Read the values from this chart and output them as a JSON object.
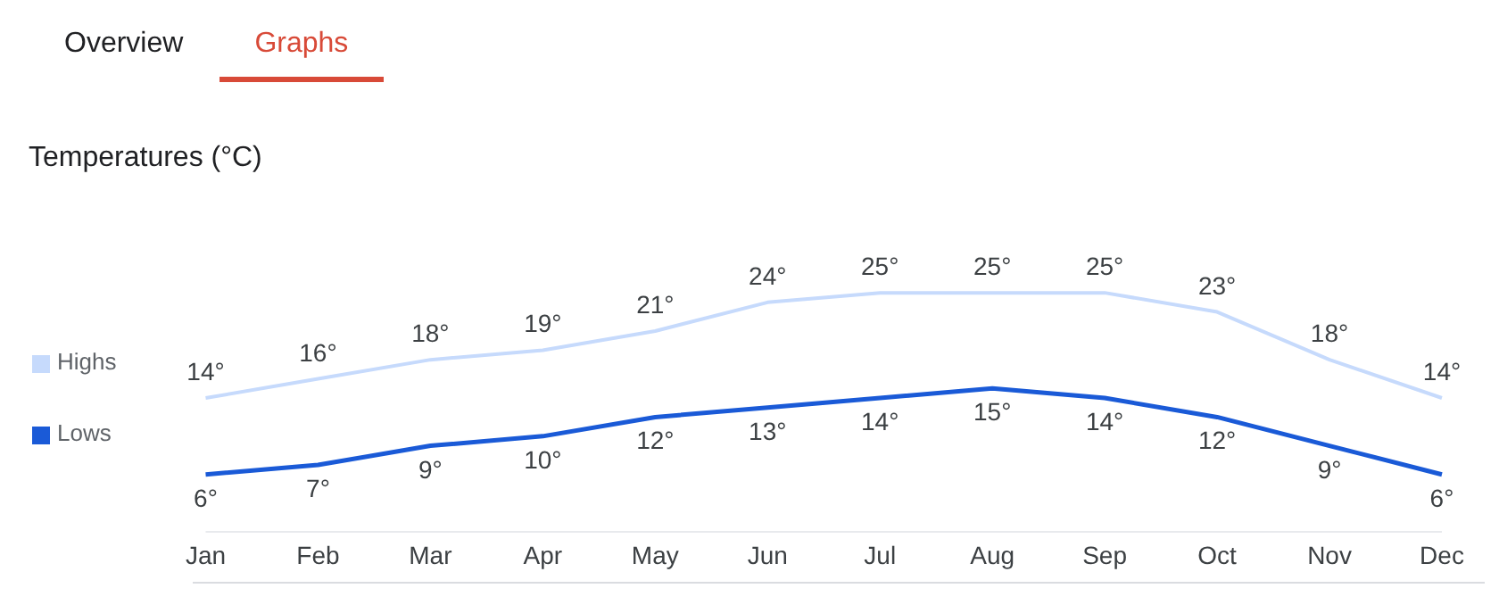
{
  "chart_data": {
    "type": "line",
    "title": "Temperatures (°C)",
    "annotations": [
      "Overview",
      "Graphs"
    ],
    "categories": [
      "Jan",
      "Feb",
      "Mar",
      "Apr",
      "May",
      "Jun",
      "Jul",
      "Aug",
      "Sep",
      "Oct",
      "Nov",
      "Dec"
    ],
    "series": [
      {
        "name": "Highs",
        "color": "#c6dafc",
        "values": [
          14,
          16,
          18,
          19,
          21,
          24,
          25,
          25,
          25,
          23,
          18,
          14
        ],
        "value_labels": [
          "14°",
          "16°",
          "18°",
          "19°",
          "21°",
          "24°",
          "25°",
          "25°",
          "25°",
          "23°",
          "18°",
          "14°"
        ]
      },
      {
        "name": "Lows",
        "color": "#1a5ad7",
        "values": [
          6,
          7,
          9,
          10,
          12,
          13,
          14,
          15,
          14,
          12,
          9,
          6
        ],
        "value_labels": [
          "6°",
          "7°",
          "9°",
          "10°",
          "12°",
          "13°",
          "14°",
          "15°",
          "14°",
          "12°",
          "9°",
          "6°"
        ]
      }
    ],
    "legend": "left",
    "marker": "none",
    "line_style": "solid",
    "grid": false
  }
}
